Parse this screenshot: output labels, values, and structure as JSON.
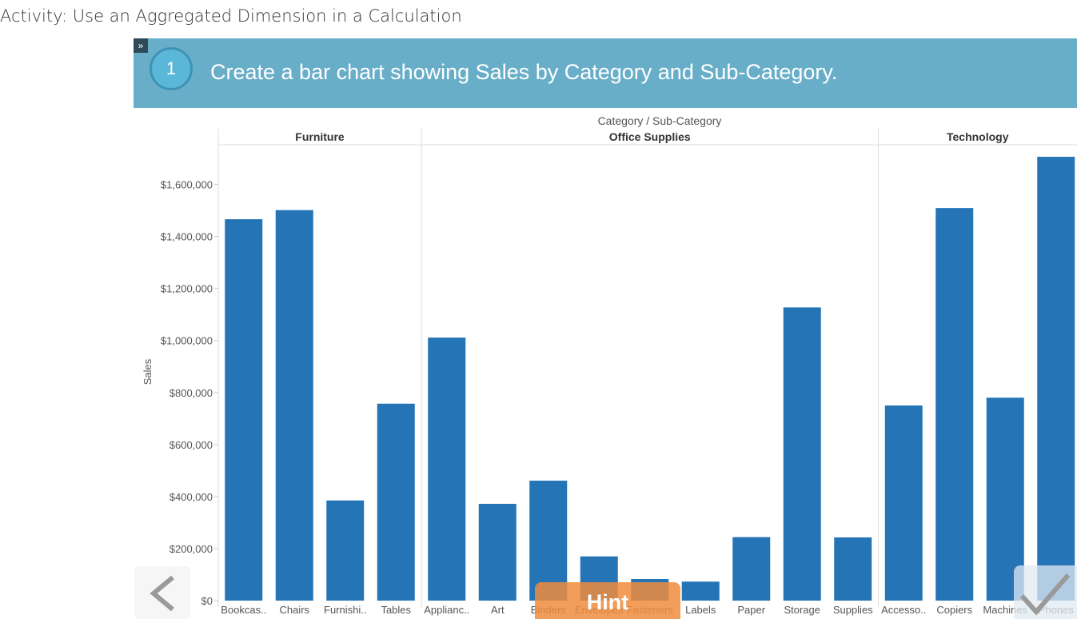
{
  "activity": {
    "title": "Activity: Use an Aggregated Dimension in a Calculation"
  },
  "step": {
    "number": "1",
    "text": "Create a bar chart showing Sales by Category and Sub-Category."
  },
  "controls": {
    "hint_label": "Hint"
  },
  "colors": {
    "bar": "#2574b6",
    "banner": "#69aec9",
    "hint": "#f08c3c"
  },
  "chart_data": {
    "type": "bar",
    "title": "Category  /  Sub-Category",
    "ylabel": "Sales",
    "ylim": [
      0,
      1700000
    ],
    "yticks": [
      {
        "value": 0,
        "label": "$0"
      },
      {
        "value": 200000,
        "label": "$200,000"
      },
      {
        "value": 400000,
        "label": "$400,000"
      },
      {
        "value": 600000,
        "label": "$600,000"
      },
      {
        "value": 800000,
        "label": "$800,000"
      },
      {
        "value": 1000000,
        "label": "$1,000,000"
      },
      {
        "value": 1200000,
        "label": "$1,200,000"
      },
      {
        "value": 1400000,
        "label": "$1,400,000"
      },
      {
        "value": 1600000,
        "label": "$1,600,000"
      }
    ],
    "groups": [
      {
        "name": "Furniture",
        "categories": [
          {
            "label": "Bookcas..",
            "value": 1466000
          },
          {
            "label": "Chairs",
            "value": 1501000
          },
          {
            "label": "Furnishi..",
            "value": 385000
          },
          {
            "label": "Tables",
            "value": 757000
          }
        ]
      },
      {
        "name": "Office Supplies",
        "categories": [
          {
            "label": "Applianc..",
            "value": 1011000
          },
          {
            "label": "Art",
            "value": 372000
          },
          {
            "label": "Binders",
            "value": 461000
          },
          {
            "label": "Envelopes",
            "value": 170000
          },
          {
            "label": "Fasteners",
            "value": 83000
          },
          {
            "label": "Labels",
            "value": 73000
          },
          {
            "label": "Paper",
            "value": 244000
          },
          {
            "label": "Storage",
            "value": 1127000
          },
          {
            "label": "Supplies",
            "value": 243000
          }
        ]
      },
      {
        "name": "Technology",
        "categories": [
          {
            "label": "Accesso..",
            "value": 750000
          },
          {
            "label": "Copiers",
            "value": 1509000
          },
          {
            "label": "Machines",
            "value": 780000
          },
          {
            "label": "Phones",
            "value": 1706000
          }
        ]
      }
    ]
  }
}
